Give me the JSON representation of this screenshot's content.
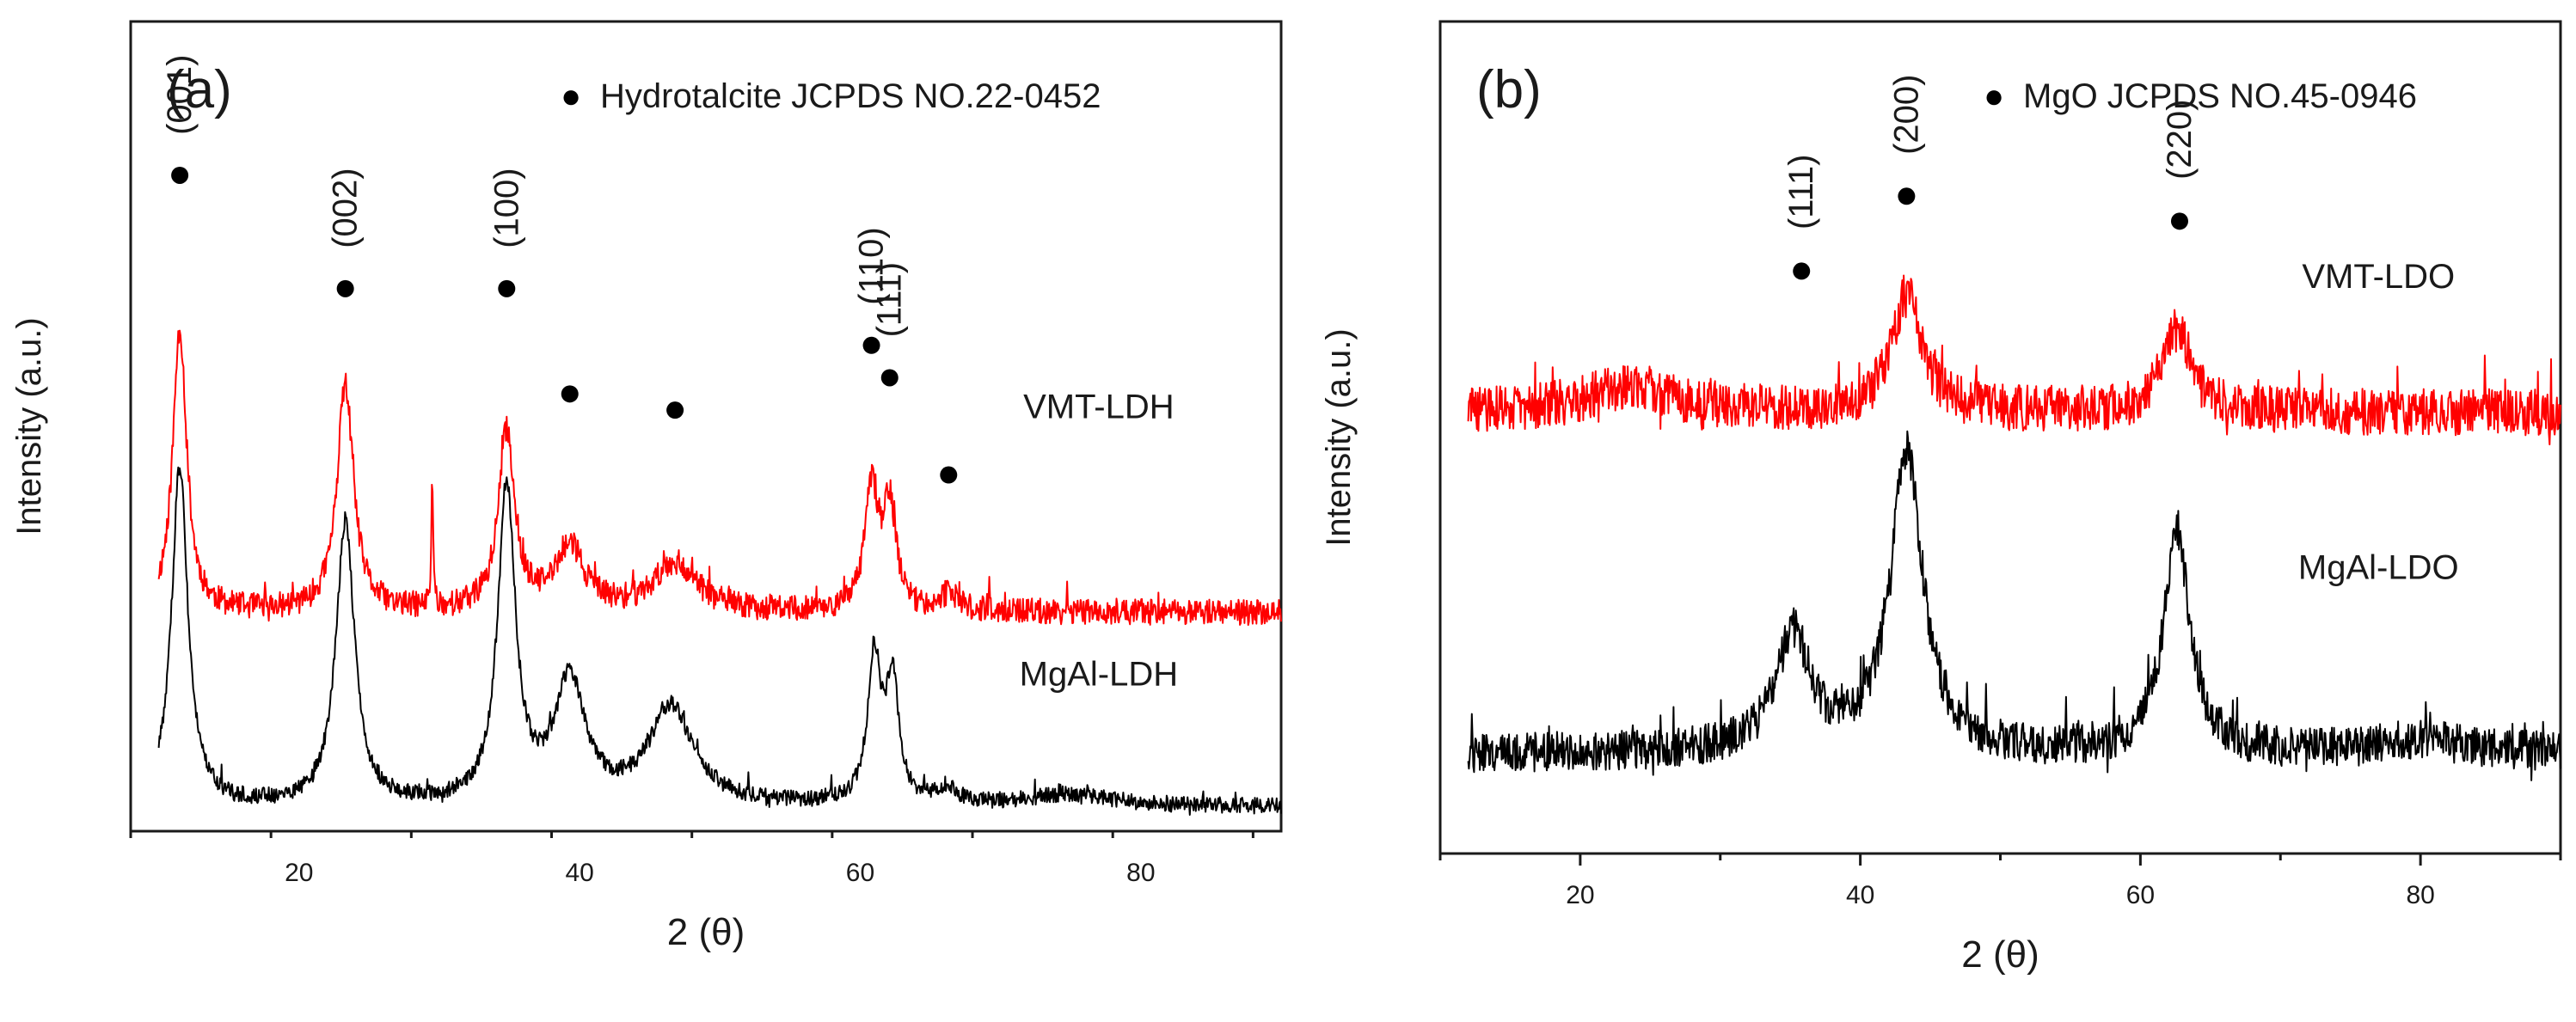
{
  "chart_data": [
    {
      "panel_label": "(a)",
      "type": "line",
      "legend_marker": "●",
      "legend_text": "Hydrotalcite  JCPDS NO.22-0452",
      "xlabel": "2 (θ)",
      "ylabel": "Intensity (a.u.)",
      "xlim": [
        8,
        90
      ],
      "ylim": [
        0,
        100
      ],
      "x_ticks": [
        20,
        40,
        60,
        80
      ],
      "grid": false,
      "y_tick_labels_shown": false,
      "series": [
        {
          "name": "VMT-LDH",
          "color": "#ff0000",
          "baseline": 27,
          "noise": 1.6,
          "peaks": [
            {
              "x": 11.5,
              "h": 35,
              "w": 0.6
            },
            {
              "x": 23.3,
              "h": 28,
              "w": 0.7
            },
            {
              "x": 29.5,
              "h": 16,
              "w": 0.08
            },
            {
              "x": 34.8,
              "h": 22,
              "w": 0.7
            },
            {
              "x": 39.3,
              "h": 8,
              "w": 1.2
            },
            {
              "x": 46.8,
              "h": 6,
              "w": 1.8
            },
            {
              "x": 60.8,
              "h": 15,
              "w": 0.55
            },
            {
              "x": 62.1,
              "h": 13,
              "w": 0.55
            },
            {
              "x": 66.3,
              "h": 2,
              "w": 0.8
            }
          ]
        },
        {
          "name": "MgAl-LDH",
          "color": "#000000",
          "baseline": 3,
          "noise": 1.0,
          "peaks": [
            {
              "x": 11.5,
              "h": 42,
              "w": 0.7
            },
            {
              "x": 23.3,
              "h": 35,
              "w": 0.8
            },
            {
              "x": 34.8,
              "h": 39,
              "w": 0.75
            },
            {
              "x": 39.3,
              "h": 15,
              "w": 1.3
            },
            {
              "x": 46.5,
              "h": 12,
              "w": 1.9
            },
            {
              "x": 61.0,
              "h": 18,
              "w": 0.55
            },
            {
              "x": 62.3,
              "h": 15,
              "w": 0.55
            },
            {
              "x": 66.2,
              "h": 2,
              "w": 0.8
            },
            {
              "x": 75.0,
              "h": 1.5,
              "w": 3.5
            }
          ]
        }
      ],
      "peak_markers": [
        {
          "x": 11.5,
          "y": 81
        },
        {
          "x": 23.3,
          "y": 67
        },
        {
          "x": 34.8,
          "y": 67
        },
        {
          "x": 39.3,
          "y": 54
        },
        {
          "x": 46.8,
          "y": 52
        },
        {
          "x": 60.8,
          "y": 60
        },
        {
          "x": 62.1,
          "y": 56
        },
        {
          "x": 66.3,
          "y": 44
        }
      ],
      "peak_labels": [
        {
          "text": "(001)",
          "x": 11.5,
          "y": 86
        },
        {
          "text": "(002)",
          "x": 23.3,
          "y": 72
        },
        {
          "text": "(100)",
          "x": 34.8,
          "y": 72
        },
        {
          "text": "(110)",
          "x": 60.8,
          "y": 65
        },
        {
          "text": "(111)",
          "x": 62.1,
          "y": 61
        }
      ],
      "series_labels": [
        {
          "text": "VMT-LDH",
          "x": 77,
          "y": 51
        },
        {
          "text": "MgAl-LDH",
          "x": 77,
          "y": 18
        }
      ]
    },
    {
      "panel_label": "(b)",
      "type": "line",
      "legend_marker": "●",
      "legend_text": "MgO JCPDS NO.45-0946",
      "xlabel": "2 (θ)",
      "ylabel": "Intensity (a.u.)",
      "xlim": [
        10,
        90
      ],
      "ylim": [
        0,
        100
      ],
      "x_ticks": [
        20,
        40,
        60,
        80
      ],
      "grid": false,
      "y_tick_labels_shown": false,
      "series": [
        {
          "name": "VMT-LDO",
          "color": "#ff0000",
          "baseline": 53,
          "noise": 2.8,
          "peaks": [
            {
              "x": 23.5,
              "h": 3,
              "w": 4.0
            },
            {
              "x": 43.3,
              "h": 14,
              "w": 1.3
            },
            {
              "x": 62.6,
              "h": 10,
              "w": 1.2
            }
          ]
        },
        {
          "name": "MgAl-LDO",
          "color": "#000000",
          "baseline": 12,
          "noise": 2.4,
          "peaks": [
            {
              "x": 35.2,
              "h": 14,
              "w": 1.5
            },
            {
              "x": 43.3,
              "h": 36,
              "w": 1.4
            },
            {
              "x": 62.6,
              "h": 27,
              "w": 1.1
            },
            {
              "x": 80.0,
              "h": 1.5,
              "w": 4.0
            }
          ]
        }
      ],
      "peak_markers": [
        {
          "x": 35.8,
          "y": 70
        },
        {
          "x": 43.3,
          "y": 79
        },
        {
          "x": 62.8,
          "y": 76
        }
      ],
      "peak_labels": [
        {
          "text": "(111)",
          "x": 35.8,
          "y": 75
        },
        {
          "text": "(200)",
          "x": 43.3,
          "y": 84
        },
        {
          "text": "(220)",
          "x": 62.8,
          "y": 81
        }
      ],
      "series_labels": [
        {
          "text": "VMT-LDO",
          "x": 77,
          "y": 68
        },
        {
          "text": "MgAl-LDO",
          "x": 77,
          "y": 33
        }
      ]
    }
  ]
}
